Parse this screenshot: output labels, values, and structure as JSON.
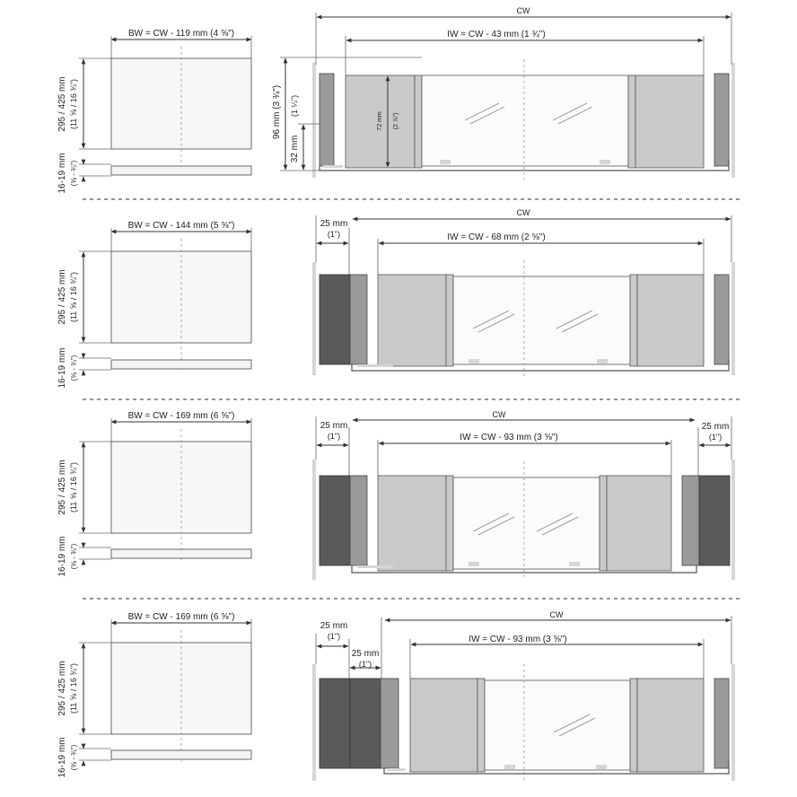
{
  "rows": [
    {
      "bw_label": "BW = CW - 119 mm (4 ⅝\")",
      "height_label": "295 / 425 mm",
      "height_label_in": "(11 ⅝ / 16 ¾\")",
      "thickness_label": "16-19 mm",
      "thickness_label_in": "(⅝ - ¾\")",
      "cw_label": "CW",
      "iw_label": "IW = CW - 43 mm (1 ¾\")",
      "h96_label": "96 mm (3 ¾\")",
      "h32_label": "32 mm",
      "h32_label_in": "(1 ¼\")",
      "h72_label": "72 mm",
      "h72_label_in": "(2 ⅞\")"
    },
    {
      "bw_label": "BW = CW - 144 mm (5 ⅝\")",
      "height_label": "295 / 425 mm",
      "height_label_in": "(11 ⅝ / 16 ¾\")",
      "thickness_label": "16-19 mm",
      "thickness_label_in": "(⅝ - ¾\")",
      "cw_label": "CW",
      "iw_label": "IW = CW - 68 mm (2 ⅝\")",
      "side1_label": "25 mm",
      "side1_label_in": "(1\")"
    },
    {
      "bw_label": "BW = CW - 169 mm (6 ⅝\")",
      "height_label": "295 / 425 mm",
      "height_label_in": "(11 ⅝ / 16 ¾\")",
      "thickness_label": "16-19 mm",
      "thickness_label_in": "(⅝ - ¾\")",
      "cw_label": "CW",
      "iw_label": "IW = CW - 93 mm (3 ⅝\")",
      "side1_label": "25 mm",
      "side1_label_in": "(1\")",
      "side2_label": "25 mm",
      "side2_label_in": "(1\")"
    },
    {
      "bw_label": "BW = CW - 169 mm (6 ⅝\")",
      "height_label": "295 / 425 mm",
      "height_label_in": "(11 ⅝ / 16 ¾\")",
      "thickness_label": "16-19 mm",
      "thickness_label_in": "(⅝ - ¾\")",
      "cw_label": "CW",
      "iw_label": "IW = CW - 93 mm (3 ⅝\")",
      "side1_label": "25 mm",
      "side1_label_in": "(1\")",
      "side2_label": "25 mm",
      "side2_label_in": "(1\")"
    }
  ],
  "colors": {
    "dark": "#5a5a5a",
    "mid": "#9a9a9a",
    "light": "#c9c9c9",
    "line": "#333333"
  }
}
